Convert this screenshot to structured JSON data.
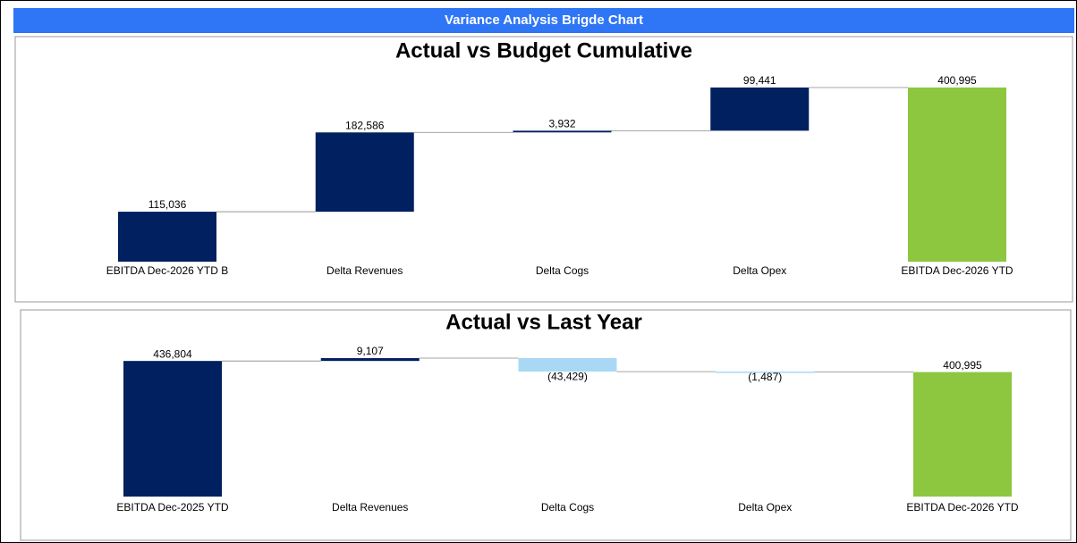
{
  "header": {
    "title": "Variance Analysis Brigde Chart"
  },
  "chart_data": [
    {
      "type": "waterfall",
      "title": "Actual vs Budget Cumulative",
      "categories": [
        "EBITDA Dec-2026 YTD B",
        "Delta Revenues",
        "Delta Cogs",
        "Delta Opex",
        "EBITDA Dec-2026 YTD"
      ],
      "values": [
        115036,
        182586,
        3932,
        99441,
        400995
      ],
      "value_labels": [
        "115,036",
        "182,586",
        "3,932",
        "99,441",
        "400,995"
      ],
      "measure": [
        "absolute",
        "relative",
        "relative",
        "relative",
        "total"
      ],
      "colors": [
        "#002060",
        "#002060",
        "#002060",
        "#002060",
        "#8dc63f"
      ]
    },
    {
      "type": "waterfall",
      "title": "Actual vs Last Year",
      "categories": [
        "EBITDA Dec-2025 YTD",
        "Delta Revenues",
        "Delta Cogs",
        "Delta Opex",
        "EBITDA Dec-2026 YTD"
      ],
      "values": [
        436804,
        9107,
        -43429,
        -1487,
        400995
      ],
      "value_labels": [
        "436,804",
        "9,107",
        "(43,429)",
        "(1,487)",
        "400,995"
      ],
      "measure": [
        "absolute",
        "relative",
        "relative",
        "relative",
        "total"
      ],
      "colors": [
        "#002060",
        "#002060",
        "#a9d8f5",
        "#a9d8f5",
        "#8dc63f"
      ]
    }
  ]
}
